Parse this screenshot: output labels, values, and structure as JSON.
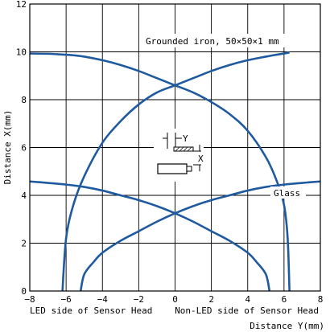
{
  "chart_data": {
    "type": "line",
    "title": "",
    "xlabel": "Distance Y(mm)",
    "ylabel": "Distance X(mm)",
    "xlim": [
      -8,
      8
    ],
    "ylim": [
      0,
      12
    ],
    "grid": true,
    "x_ticks": [
      -8,
      -6,
      -4,
      -2,
      0,
      2,
      4,
      6,
      8
    ],
    "x_tick_labels": [
      "−8",
      "−6",
      "−4",
      "−2",
      "0",
      "2",
      "4",
      "6",
      "8"
    ],
    "y_ticks": [
      0,
      2,
      4,
      6,
      8,
      10,
      12
    ],
    "y_tick_labels": [
      "0",
      "2",
      "4",
      "6",
      "8",
      "10",
      "12"
    ],
    "side_labels": {
      "left": "LED side of Sensor Head",
      "right": "Non-LED side of Sensor Head"
    },
    "annotations": [
      {
        "text": "Grounded iron, 50×50×1 mm",
        "target": "iron"
      },
      {
        "text": "Glass",
        "target": "glass"
      }
    ],
    "inset_labels": {
      "y": "Y",
      "x": "X"
    },
    "line_color": "#1f5aa0",
    "series": [
      {
        "id": "iron",
        "curves": [
          {
            "x": [
              -6.2,
              -6.0,
              -5.6,
              -5.0,
              -4.0,
              -3.0,
              -2.0,
              -1.0,
              0.0,
              1.0,
              2.0,
              3.0,
              4.0,
              5.0,
              5.5,
              6.0,
              6.2,
              6.3
            ],
            "y": [
              0.0,
              2.2,
              3.6,
              4.8,
              6.2,
              7.1,
              7.8,
              8.3,
              8.6,
              8.9,
              9.2,
              9.45,
              9.65,
              9.8,
              9.87,
              9.93,
              9.96,
              9.97
            ]
          },
          {
            "x": [
              6.3,
              6.2,
              6.0,
              5.6,
              5.0,
              4.0,
              3.0,
              2.0,
              1.0,
              0.0,
              -1.0,
              -2.0,
              -3.0,
              -4.0,
              -5.0,
              -5.5,
              -6.0,
              -6.5,
              -7.0,
              -8.0
            ],
            "y": [
              0.0,
              2.2,
              3.6,
              4.6,
              5.6,
              6.7,
              7.4,
              7.9,
              8.3,
              8.6,
              8.9,
              9.2,
              9.45,
              9.65,
              9.8,
              9.85,
              9.88,
              9.9,
              9.92,
              9.93
            ]
          }
        ]
      },
      {
        "id": "glass",
        "curves": [
          {
            "x": [
              -5.2,
              -5.0,
              -4.5,
              -4.0,
              -3.0,
              -2.0,
              -1.0,
              0.0,
              1.0,
              2.0,
              3.0,
              4.0,
              5.0,
              6.0,
              7.0,
              8.0
            ],
            "y": [
              0.0,
              0.7,
              1.2,
              1.6,
              2.1,
              2.5,
              2.9,
              3.25,
              3.55,
              3.8,
              4.0,
              4.2,
              4.35,
              4.45,
              4.52,
              4.58
            ]
          },
          {
            "x": [
              5.2,
              5.0,
              4.5,
              4.0,
              3.0,
              2.0,
              1.0,
              0.0,
              -1.0,
              -2.0,
              -3.0,
              -4.0,
              -5.0,
              -6.0,
              -7.0,
              -8.0
            ],
            "y": [
              0.0,
              0.7,
              1.2,
              1.6,
              2.1,
              2.5,
              2.9,
              3.25,
              3.55,
              3.8,
              4.0,
              4.2,
              4.35,
              4.45,
              4.52,
              4.58
            ]
          }
        ]
      }
    ]
  }
}
